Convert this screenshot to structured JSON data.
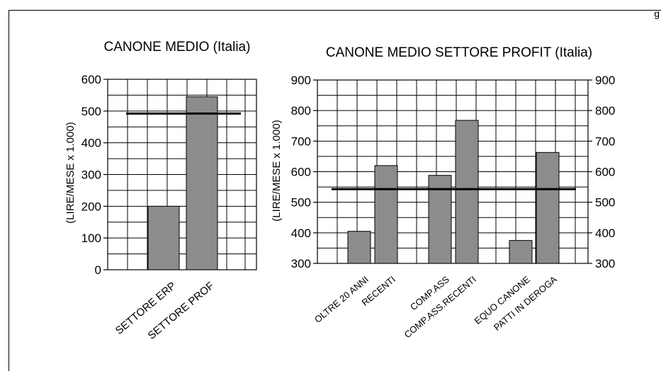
{
  "page": {
    "marker": "g"
  },
  "chart_data": [
    {
      "type": "bar",
      "title": "CANONE MEDIO (Italia)",
      "ylabel": "(LIRE/MESE x 1.000)",
      "ylim": [
        0,
        600
      ],
      "yticks": [
        0,
        100,
        200,
        300,
        400,
        500,
        600
      ],
      "categories": [
        "SETTORE ERP",
        "SETTORE PROF"
      ],
      "values": [
        200,
        545
      ],
      "reference_line": 492,
      "grid": true,
      "colors": {
        "bar": "#8c8c8c",
        "line": "#000000"
      }
    },
    {
      "type": "bar",
      "title": "CANONE MEDIO SETTORE PROFIT (Italia)",
      "ylabel": "(LIRE/MESE x 1.000)",
      "ylim": [
        300,
        900
      ],
      "yticks": [
        300,
        400,
        500,
        600,
        700,
        800,
        900
      ],
      "secondary_y_axis": true,
      "categories": [
        "OLTRE 20 ANNI",
        "RECENTI",
        "COMP.ASS",
        "COMP.ASS.RECENTI",
        "EQUO CANONE",
        "PATTI IN DEROGA"
      ],
      "values": [
        405,
        620,
        588,
        768,
        375,
        663
      ],
      "reference_line": 543,
      "grid": true,
      "colors": {
        "bar": "#8c8c8c",
        "line": "#000000"
      }
    }
  ]
}
